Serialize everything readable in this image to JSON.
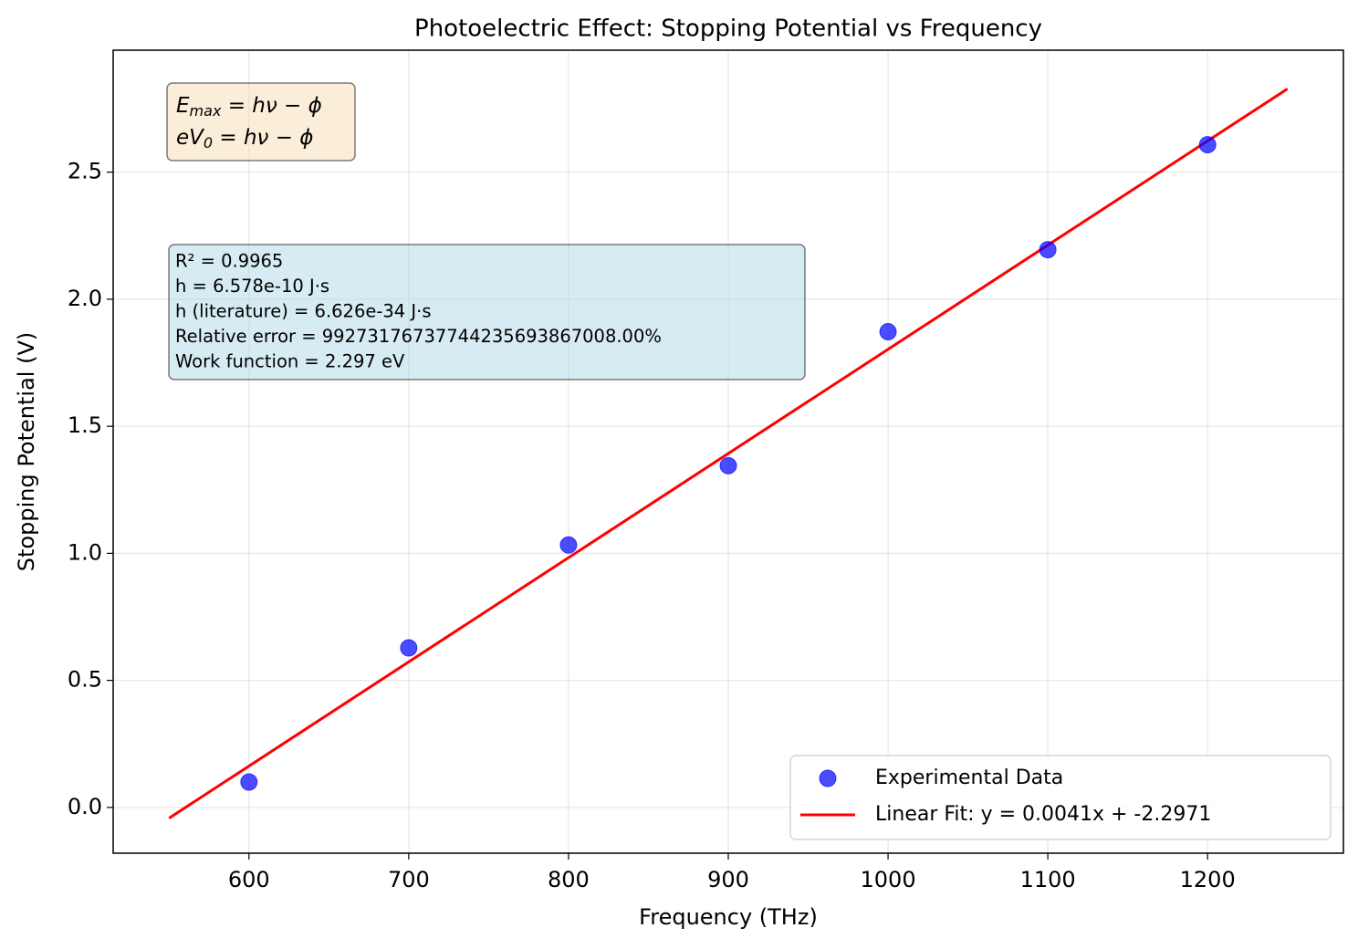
{
  "chart_data": {
    "type": "scatter",
    "title": "Photoelectric Effect: Stopping Potential vs Frequency",
    "xlabel": "Frequency (THz)",
    "ylabel": "Stopping Potential (V)",
    "xlim": [
      515,
      1285
    ],
    "ylim": [
      -0.18,
      2.98
    ],
    "xticks": [
      600,
      700,
      800,
      900,
      1000,
      1100,
      1200
    ],
    "yticks": [
      {
        "value": 0,
        "label": "0.0"
      },
      {
        "value": 0.5,
        "label": "0.5"
      },
      {
        "value": 1,
        "label": "1.0"
      },
      {
        "value": 1.5,
        "label": "1.5"
      },
      {
        "value": 2,
        "label": "2.0"
      },
      {
        "value": 2.5,
        "label": "2.5"
      }
    ],
    "grid": true,
    "legend_position": "lower right",
    "series": [
      {
        "name": "Experimental Data",
        "type": "scatter",
        "color": "#0000ff",
        "x": [
          600,
          700,
          800,
          900,
          1000,
          1100,
          1200
        ],
        "values": [
          0.1,
          0.628,
          1.033,
          1.345,
          1.872,
          2.195,
          2.608
        ]
      },
      {
        "name": "Linear Fit: y = 0.0041x + -2.2971",
        "type": "line",
        "color": "#ff0000",
        "x": [
          550,
          1250
        ],
        "values": [
          -0.0421,
          2.8279
        ]
      }
    ],
    "formula_box": [
      {
        "main": "E",
        "sub": "max",
        "rest": " = hν − ϕ"
      },
      {
        "main": "eV",
        "sub": "0",
        "rest": " = hν − ϕ"
      }
    ],
    "stats_box": [
      "R² = 0.9965",
      "h = 6.578e-10 J·s",
      "h (literature) = 6.626e-34 J·s",
      "Relative error = 99273176737744235693867008.00%",
      "Work function = 2.297 eV"
    ]
  }
}
